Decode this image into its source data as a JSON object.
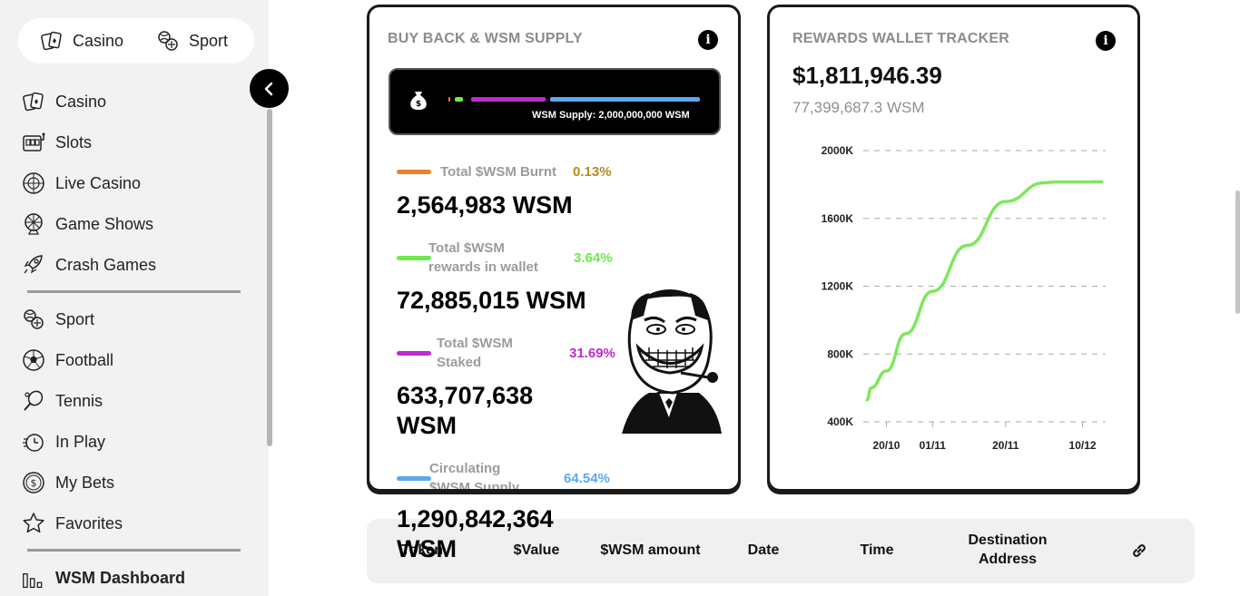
{
  "sidebar": {
    "switch": {
      "casino": "Casino",
      "sport": "Sport"
    },
    "casino_items": [
      "Casino",
      "Slots",
      "Live Casino",
      "Game Shows",
      "Crash Games"
    ],
    "sport_items": [
      "Sport",
      "Football",
      "Tennis",
      "In Play",
      "My Bets",
      "Favorites"
    ],
    "dashboard": "WSM Dashboard"
  },
  "buyback": {
    "title": "BUY BACK & WSM SUPPLY",
    "supply_label": "WSM Supply: 2,000,000,000 WSM",
    "stats": [
      {
        "label_lines": [
          "Total $WSM Burnt"
        ],
        "pct": "0.13%",
        "value_lines": [
          "2,564,983 WSM"
        ],
        "color": "#f07f2a",
        "pct_color": "#b88a1a"
      },
      {
        "label_lines": [
          "Total $WSM",
          "rewards in wallet"
        ],
        "pct": "3.64%",
        "value_lines": [
          "72,885,015 WSM"
        ],
        "color": "#6ee94a",
        "pct_color": "#6ee94a"
      },
      {
        "label_lines": [
          "Total $WSM",
          "Staked"
        ],
        "pct": "31.69%",
        "value_lines": [
          "633,707,638",
          "WSM"
        ],
        "color": "#c12ad0",
        "pct_color": "#c12ad0"
      },
      {
        "label_lines": [
          "Circulating",
          "$WSM Supply"
        ],
        "pct": "64.54%",
        "value_lines": [
          "1,290,842,364",
          "WSM"
        ],
        "color": "#5aa9ee",
        "pct_color": "#5aa9ee"
      }
    ]
  },
  "rewards": {
    "title": "REWARDS WALLET TRACKER",
    "amount": "$1,811,946.39",
    "wsm": "77,399,687.3 WSM"
  },
  "chart_data": {
    "type": "line",
    "title": "",
    "y_ticks": [
      "2000K",
      "1600K",
      "1200K",
      "800K",
      "400K"
    ],
    "x_ticks": [
      "20/10",
      "01/11",
      "20/11",
      "10/12"
    ],
    "ylim": [
      400,
      2000
    ],
    "y_unit": "K",
    "grid": true,
    "series": [
      {
        "color": "#7de85c",
        "x": [
          "15/10",
          "16/10",
          "20/10",
          "25/10",
          "01/11",
          "10/11",
          "20/11",
          "30/11",
          "03/12",
          "10/12",
          "15/12"
        ],
        "values": [
          530,
          600,
          700,
          920,
          1170,
          1440,
          1700,
          1810,
          1815,
          1815,
          1816
        ]
      }
    ]
  },
  "table": {
    "headers": [
      "Token",
      "$Value",
      "$WSM amount",
      "Date",
      "Time",
      "Destination Address"
    ]
  }
}
